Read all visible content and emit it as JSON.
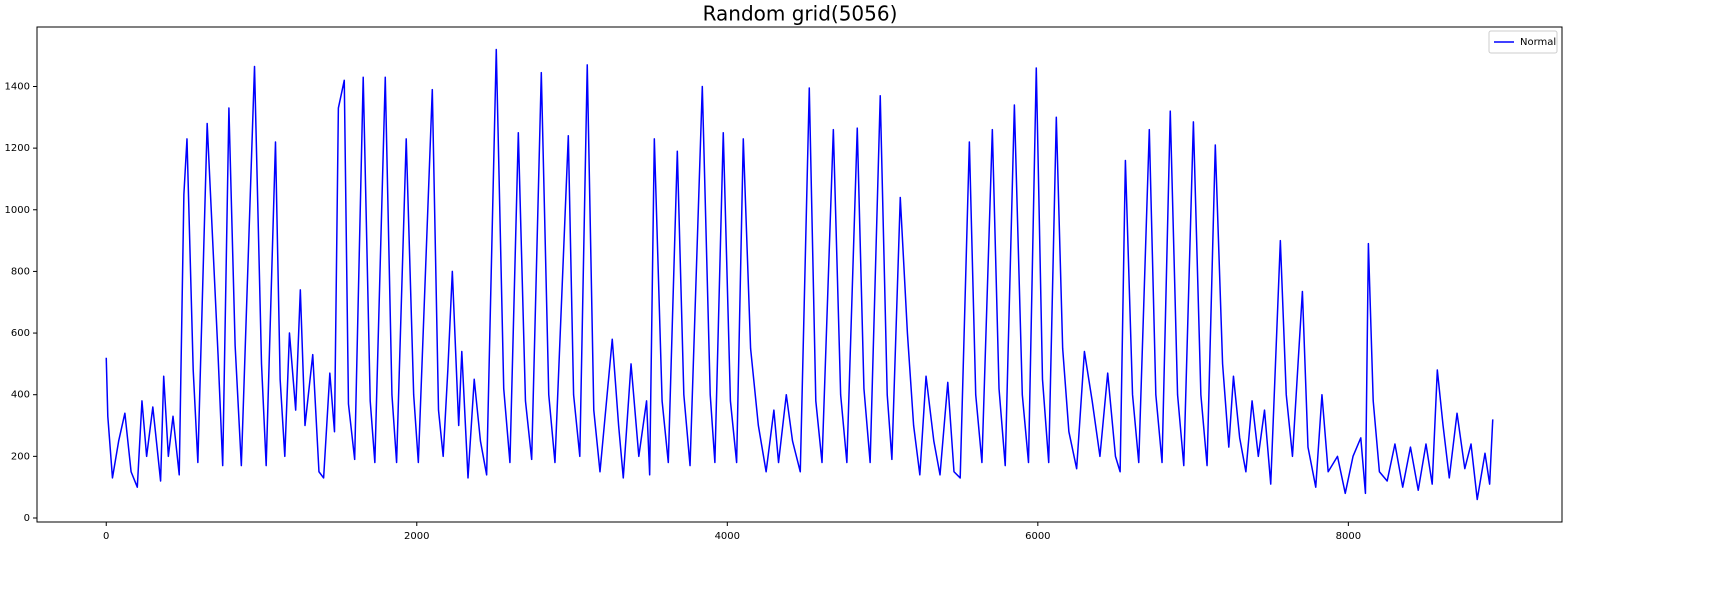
{
  "chart_data": {
    "type": "line",
    "title": "Random grid(5056)",
    "x": [
      0,
      10,
      40,
      80,
      120,
      160,
      200,
      230,
      260,
      300,
      350,
      370,
      400,
      430,
      470,
      500,
      520,
      560,
      590,
      650,
      720,
      750,
      790,
      830,
      870,
      955,
      1000,
      1030,
      1090,
      1120,
      1150,
      1180,
      1220,
      1250,
      1280,
      1330,
      1370,
      1400,
      1440,
      1470,
      1495,
      1533,
      1560,
      1600,
      1655,
      1700,
      1730,
      1797,
      1840,
      1870,
      1932,
      1980,
      2010,
      2100,
      2140,
      2170,
      2200,
      2229,
      2270,
      2290,
      2330,
      2370,
      2410,
      2450,
      2512,
      2560,
      2600,
      2654,
      2700,
      2740,
      2802,
      2850,
      2890,
      2976,
      3010,
      3050,
      3098,
      3140,
      3180,
      3259,
      3300,
      3330,
      3380,
      3430,
      3480,
      3500,
      3530,
      3580,
      3620,
      3678,
      3720,
      3760,
      3839,
      3890,
      3920,
      3974,
      4020,
      4060,
      4103,
      4150,
      4200,
      4250,
      4300,
      4330,
      4380,
      4420,
      4470,
      4528,
      4570,
      4610,
      4683,
      4730,
      4770,
      4837,
      4880,
      4920,
      4985,
      5030,
      5060,
      5114,
      5160,
      5200,
      5240,
      5280,
      5330,
      5370,
      5420,
      5460,
      5500,
      5559,
      5600,
      5640,
      5707,
      5750,
      5790,
      5849,
      5900,
      5940,
      5990,
      6030,
      6070,
      6119,
      6160,
      6200,
      6250,
      6300,
      6350,
      6400,
      6450,
      6500,
      6530,
      6564,
      6610,
      6650,
      6718,
      6760,
      6800,
      6853,
      6900,
      6940,
      7002,
      7050,
      7090,
      7143,
      7190,
      7230,
      7260,
      7300,
      7340,
      7380,
      7420,
      7460,
      7500,
      7562,
      7600,
      7640,
      7704,
      7740,
      7790,
      7830,
      7870,
      7930,
      7980,
      8030,
      8080,
      8110,
      8129,
      8160,
      8200,
      8250,
      8300,
      8350,
      8400,
      8450,
      8500,
      8540,
      8573,
      8610,
      8650,
      8700,
      8750,
      8790,
      8830,
      8880,
      8910,
      8930
    ],
    "series": [
      {
        "name": "Normal",
        "color": "#0000ff",
        "values": [
          520,
          330,
          130,
          250,
          340,
          150,
          100,
          380,
          200,
          360,
          120,
          460,
          200,
          330,
          140,
          1050,
          1230,
          480,
          180,
          1280,
          530,
          170,
          1330,
          560,
          170,
          1465,
          500,
          170,
          1220,
          450,
          200,
          600,
          350,
          740,
          300,
          530,
          150,
          130,
          470,
          280,
          1330,
          1420,
          370,
          190,
          1430,
          380,
          180,
          1430,
          400,
          180,
          1230,
          400,
          180,
          1390,
          350,
          200,
          480,
          800,
          300,
          540,
          130,
          450,
          250,
          140,
          1520,
          420,
          180,
          1250,
          380,
          190,
          1445,
          400,
          180,
          1240,
          400,
          200,
          1470,
          350,
          150,
          580,
          300,
          130,
          500,
          200,
          380,
          140,
          1230,
          380,
          180,
          1190,
          400,
          170,
          1400,
          400,
          180,
          1250,
          380,
          180,
          1230,
          550,
          300,
          150,
          350,
          180,
          400,
          250,
          150,
          1395,
          380,
          180,
          1260,
          400,
          180,
          1265,
          420,
          180,
          1370,
          400,
          190,
          1040,
          600,
          300,
          140,
          460,
          250,
          140,
          440,
          150,
          130,
          1220,
          400,
          180,
          1260,
          420,
          170,
          1340,
          400,
          180,
          1460,
          450,
          180,
          1300,
          550,
          280,
          160,
          540,
          380,
          200,
          470,
          200,
          150,
          1160,
          400,
          180,
          1260,
          400,
          180,
          1320,
          400,
          170,
          1285,
          400,
          170,
          1210,
          500,
          230,
          460,
          260,
          150,
          380,
          200,
          350,
          110,
          900,
          400,
          200,
          735,
          230,
          100,
          400,
          150,
          200,
          80,
          200,
          260,
          80,
          890,
          380,
          150,
          120,
          240,
          100,
          230,
          90,
          240,
          110,
          480,
          300,
          130,
          340,
          160,
          240,
          60,
          210,
          110,
          320
        ]
      }
    ],
    "xlim": [
      -446,
      9376
    ],
    "xticks": [
      0,
      2000,
      4000,
      6000,
      8000
    ],
    "ylim": [
      -13,
      1593
    ],
    "yticks": [
      0,
      200,
      400,
      600,
      800,
      1000,
      1200,
      1400
    ],
    "legend": "upper right"
  }
}
